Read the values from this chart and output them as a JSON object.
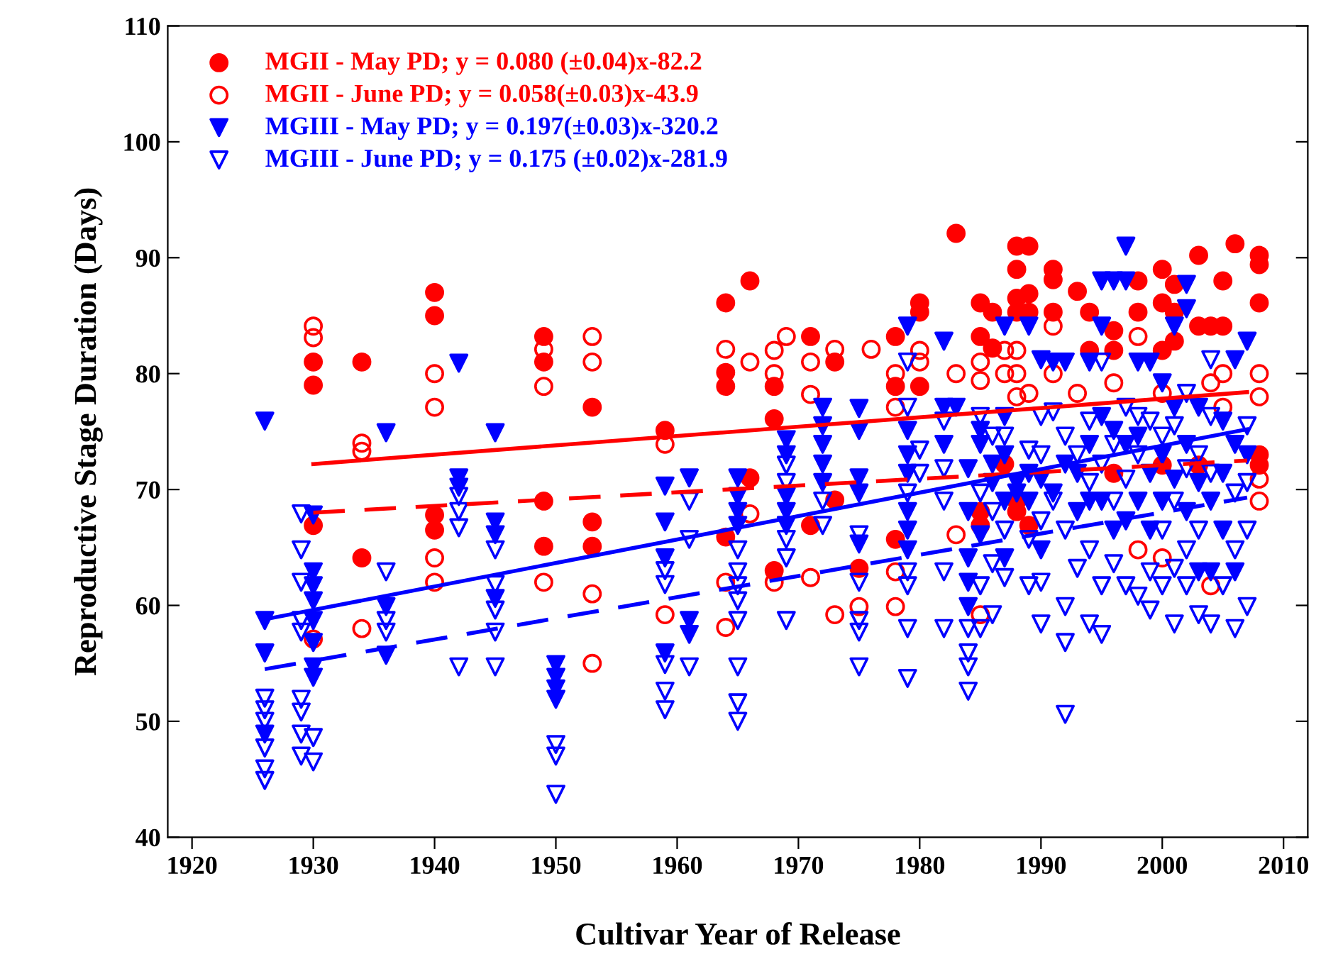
{
  "chart_data": {
    "type": "scatter",
    "xlabel": "Cultivar Year of Release",
    "ylabel": "Reproductive Stage Duration (Days)",
    "xlim": [
      1918,
      2012
    ],
    "ylim": [
      40,
      110
    ],
    "xticks": [
      1920,
      1930,
      1940,
      1950,
      1960,
      1970,
      1980,
      1990,
      2000,
      2010
    ],
    "yticks": [
      40,
      50,
      60,
      70,
      80,
      90,
      100,
      110
    ],
    "grid": false,
    "legend": "top left",
    "series": [
      {
        "name": "MGII - May PD; y = 0.080 (±0.04)x-82.2",
        "marker": "circle",
        "color": "#ff0000",
        "x": [
          1930,
          1930,
          1930,
          1934,
          1934,
          1940,
          1940,
          1940,
          1940,
          1949,
          1949,
          1949,
          1949,
          1953,
          1953,
          1953,
          1959,
          1964,
          1964,
          1964,
          1964,
          1966,
          1966,
          1968,
          1968,
          1968,
          1971,
          1971,
          1973,
          1973,
          1975,
          1978,
          1978,
          1978,
          1980,
          1980,
          1980,
          1983,
          1985,
          1985,
          1985,
          1985,
          1986,
          1986,
          1987,
          1988,
          1988,
          1988,
          1988,
          1988,
          1988,
          1989,
          1989,
          1989,
          1989,
          1991,
          1991,
          1991,
          1993,
          1994,
          1994,
          1996,
          1996,
          1996,
          1998,
          1998,
          2000,
          2000,
          2000,
          2000,
          2001,
          2001,
          2001,
          2003,
          2003,
          2003,
          2004,
          2005,
          2005,
          2006,
          2008,
          2008,
          2008,
          2008,
          2008
        ],
        "values": [
          81.0,
          79.0,
          66.9,
          81.0,
          64.1,
          87.0,
          85.0,
          67.8,
          66.5,
          83.2,
          81.0,
          69.0,
          65.1,
          77.1,
          67.2,
          65.1,
          75.1,
          86.1,
          80.1,
          78.9,
          65.9,
          88.0,
          71.0,
          78.9,
          76.1,
          63.0,
          83.2,
          66.9,
          81.0,
          69.1,
          63.2,
          83.2,
          78.9,
          65.7,
          86.1,
          85.3,
          78.9,
          92.1,
          86.1,
          83.2,
          68.1,
          66.9,
          85.3,
          82.2,
          72.2,
          91.0,
          89.0,
          86.5,
          85.3,
          69.0,
          68.1,
          91.0,
          86.9,
          85.3,
          66.9,
          89.0,
          88.1,
          85.3,
          87.1,
          85.3,
          82.0,
          83.7,
          82.0,
          71.4,
          88.0,
          85.3,
          89.0,
          86.1,
          82.0,
          72.1,
          87.7,
          85.3,
          82.8,
          90.2,
          84.1,
          72.1,
          84.1,
          88.0,
          84.1,
          91.2,
          90.2,
          89.4,
          86.1,
          73.0,
          72.1
        ]
      },
      {
        "name": "MGII - June PD; y = 0.058(±0.03)x-43.9",
        "marker": "circle",
        "color": "#ff0000",
        "x": [
          1930,
          1930,
          1930,
          1934,
          1934,
          1934,
          1940,
          1940,
          1940,
          1940,
          1949,
          1949,
          1949,
          1953,
          1953,
          1953,
          1953,
          1959,
          1959,
          1964,
          1964,
          1964,
          1966,
          1966,
          1968,
          1968,
          1968,
          1969,
          1971,
          1971,
          1971,
          1973,
          1973,
          1975,
          1976,
          1978,
          1978,
          1978,
          1978,
          1980,
          1980,
          1983,
          1983,
          1985,
          1985,
          1985,
          1987,
          1987,
          1988,
          1988,
          1988,
          1989,
          1991,
          1991,
          1993,
          1996,
          1998,
          1998,
          2000,
          2000,
          2004,
          2004,
          2005,
          2005,
          2008,
          2008,
          2008,
          2008
        ],
        "values": [
          84.1,
          83.1,
          57.1,
          74.0,
          73.3,
          58.0,
          80.0,
          77.1,
          64.1,
          62.0,
          82.1,
          78.9,
          62.0,
          83.2,
          81.0,
          61.0,
          55.0,
          73.9,
          59.2,
          82.1,
          62.0,
          58.1,
          81.0,
          67.9,
          82.0,
          80.0,
          62.0,
          83.2,
          81.0,
          78.2,
          62.4,
          82.1,
          59.2,
          59.9,
          82.1,
          80.0,
          77.1,
          62.9,
          59.9,
          82.0,
          81.0,
          80.0,
          66.1,
          81.0,
          79.4,
          59.2,
          82.0,
          80.0,
          82.0,
          80.0,
          78.0,
          78.3,
          84.1,
          80.0,
          78.3,
          79.2,
          83.2,
          64.8,
          78.3,
          64.1,
          79.2,
          61.7,
          80.0,
          77.1,
          80.0,
          78.0,
          70.9,
          69.0
        ]
      },
      {
        "name": "MGIII - May PD; y = 0.197(±0.03)x-320.2",
        "marker": "triangle",
        "color": "#0000ff",
        "x": [
          1926,
          1926,
          1926,
          1926,
          1930,
          1930,
          1930,
          1930,
          1930,
          1930,
          1930,
          1930,
          1936,
          1936,
          1936,
          1942,
          1942,
          1942,
          1945,
          1945,
          1945,
          1945,
          1950,
          1950,
          1950,
          1950,
          1959,
          1959,
          1959,
          1959,
          1961,
          1961,
          1961,
          1965,
          1965,
          1965,
          1965,
          1969,
          1969,
          1969,
          1969,
          1969,
          1972,
          1972,
          1972,
          1972,
          1972,
          1975,
          1975,
          1975,
          1975,
          1975,
          1979,
          1979,
          1979,
          1979,
          1979,
          1979,
          1979,
          1982,
          1982,
          1982,
          1983,
          1984,
          1984,
          1984,
          1984,
          1984,
          1985,
          1985,
          1985,
          1986,
          1986,
          1987,
          1987,
          1987,
          1987,
          1987,
          1988,
          1988,
          1989,
          1989,
          1989,
          1990,
          1990,
          1990,
          1991,
          1991,
          1992,
          1992,
          1993,
          1993,
          1994,
          1994,
          1994,
          1995,
          1995,
          1995,
          1995,
          1996,
          1996,
          1996,
          1997,
          1997,
          1997,
          1997,
          1998,
          1998,
          1998,
          1999,
          1999,
          1999,
          2000,
          2000,
          2000,
          2001,
          2001,
          2001,
          2002,
          2002,
          2002,
          2002,
          2003,
          2003,
          2003,
          2004,
          2004,
          2005,
          2005,
          2005,
          2006,
          2006,
          2006,
          2007,
          2007
        ],
        "values": [
          75.9,
          58.7,
          55.9,
          48.9,
          67.8,
          62.9,
          61.7,
          60.4,
          58.7,
          56.8,
          54.7,
          53.8,
          74.9,
          59.9,
          55.7,
          80.9,
          71.0,
          70.2,
          74.9,
          67.2,
          66.1,
          60.6,
          54.9,
          53.8,
          52.8,
          51.9,
          70.3,
          67.2,
          64.1,
          55.9,
          71.0,
          58.7,
          57.5,
          71.0,
          69.4,
          68.1,
          66.9,
          74.3,
          73.0,
          69.4,
          68.1,
          66.9,
          77.1,
          75.5,
          73.9,
          72.2,
          70.6,
          77.0,
          75.1,
          71.0,
          69.7,
          65.3,
          84.1,
          75.1,
          73.0,
          71.4,
          68.1,
          66.5,
          64.8,
          82.8,
          77.1,
          73.9,
          77.1,
          71.8,
          68.1,
          64.1,
          62.0,
          59.9,
          75.1,
          73.9,
          66.1,
          72.2,
          70.6,
          84.1,
          76.3,
          73.0,
          69.0,
          64.1,
          70.6,
          69.7,
          84.1,
          71.4,
          69.0,
          81.2,
          70.9,
          64.8,
          81.0,
          69.7,
          81.0,
          72.2,
          71.4,
          68.1,
          81.0,
          73.9,
          69.0,
          88.0,
          84.1,
          76.3,
          69.0,
          88.0,
          75.1,
          66.5,
          91.0,
          88.0,
          73.9,
          67.3,
          81.0,
          74.6,
          69.0,
          81.0,
          71.4,
          66.5,
          79.2,
          73.0,
          69.0,
          84.1,
          77.1,
          70.9,
          87.7,
          85.6,
          73.9,
          68.1,
          77.1,
          70.6,
          62.9,
          69.0,
          62.9,
          75.9,
          71.4,
          66.5,
          81.2,
          73.9,
          62.9,
          82.8,
          73.0
        ]
      },
      {
        "name": "MGIII - June PD; y = 0.175 (±0.02)x-281.9",
        "marker": "triangle",
        "color": "#0000ff",
        "x": [
          1926,
          1926,
          1926,
          1926,
          1926,
          1926,
          1929,
          1929,
          1929,
          1929,
          1929,
          1929,
          1929,
          1929,
          1929,
          1930,
          1930,
          1936,
          1936,
          1936,
          1942,
          1942,
          1942,
          1942,
          1945,
          1945,
          1945,
          1945,
          1945,
          1950,
          1950,
          1950,
          1959,
          1959,
          1959,
          1959,
          1959,
          1961,
          1961,
          1961,
          1965,
          1965,
          1965,
          1965,
          1965,
          1965,
          1965,
          1965,
          1969,
          1969,
          1969,
          1969,
          1969,
          1972,
          1972,
          1975,
          1975,
          1975,
          1975,
          1975,
          1979,
          1979,
          1979,
          1979,
          1979,
          1979,
          1979,
          1980,
          1980,
          1982,
          1982,
          1982,
          1982,
          1982,
          1984,
          1984,
          1984,
          1984,
          1985,
          1985,
          1985,
          1985,
          1986,
          1986,
          1986,
          1986,
          1987,
          1987,
          1987,
          1989,
          1989,
          1989,
          1990,
          1990,
          1990,
          1990,
          1990,
          1991,
          1991,
          1992,
          1992,
          1992,
          1992,
          1992,
          1993,
          1993,
          1994,
          1994,
          1994,
          1994,
          1995,
          1995,
          1995,
          1995,
          1996,
          1996,
          1996,
          1997,
          1997,
          1997,
          1998,
          1998,
          1998,
          1999,
          1999,
          1999,
          2000,
          2000,
          2000,
          2001,
          2001,
          2001,
          2001,
          2002,
          2002,
          2002,
          2002,
          2003,
          2003,
          2003,
          2004,
          2004,
          2004,
          2004,
          2005,
          2006,
          2006,
          2006,
          2007,
          2007,
          2007,
          2007
        ],
        "values": [
          52.0,
          51.0,
          50.0,
          47.7,
          45.9,
          44.9,
          67.9,
          64.8,
          62.0,
          58.7,
          57.7,
          51.9,
          50.8,
          48.9,
          47.0,
          48.6,
          46.5,
          62.9,
          58.7,
          57.7,
          69.4,
          68.1,
          66.7,
          54.7,
          64.8,
          61.8,
          59.6,
          57.7,
          54.7,
          48.0,
          47.0,
          43.7,
          63.0,
          61.8,
          54.9,
          52.6,
          51.0,
          69.0,
          65.7,
          54.7,
          64.8,
          62.9,
          61.7,
          60.4,
          58.7,
          54.7,
          51.6,
          50.0,
          72.1,
          70.6,
          65.7,
          64.1,
          58.7,
          69.0,
          66.9,
          66.1,
          62.0,
          58.7,
          57.7,
          54.7,
          81.0,
          77.1,
          69.7,
          62.9,
          61.7,
          58.0,
          53.7,
          73.4,
          71.4,
          75.9,
          71.8,
          69.0,
          62.9,
          58.0,
          58.0,
          55.9,
          54.7,
          52.6,
          76.3,
          69.7,
          61.7,
          58.0,
          74.6,
          68.1,
          63.6,
          59.2,
          74.6,
          66.5,
          62.4,
          73.4,
          65.7,
          61.7,
          76.3,
          73.0,
          67.3,
          62.0,
          58.4,
          76.7,
          69.0,
          74.6,
          66.5,
          59.9,
          56.8,
          50.6,
          73.0,
          63.2,
          75.9,
          70.6,
          64.8,
          58.4,
          81.0,
          72.2,
          61.7,
          57.5,
          73.9,
          69.0,
          63.6,
          77.1,
          70.9,
          61.7,
          76.3,
          73.0,
          60.8,
          75.9,
          62.9,
          59.6,
          74.6,
          66.5,
          61.7,
          75.5,
          69.0,
          63.2,
          58.4,
          78.3,
          71.8,
          64.8,
          61.7,
          73.0,
          66.5,
          59.2,
          81.2,
          76.3,
          71.4,
          58.4,
          61.7,
          69.7,
          64.8,
          58.0,
          75.5,
          70.6,
          66.5,
          59.9
        ]
      },
      {
        "type": "line",
        "line_style": "solid",
        "color": "#ff0000",
        "x": [
          1930,
          2007
        ],
        "values": [
          72.2,
          78.4
        ]
      },
      {
        "type": "line",
        "line_style": "dashed",
        "color": "#ff0000",
        "x": [
          1930,
          2007
        ],
        "values": [
          68.0,
          72.5
        ]
      },
      {
        "type": "line",
        "line_style": "solid",
        "color": "#0000ff",
        "x": [
          1926,
          2007
        ],
        "values": [
          58.8,
          75.2
        ]
      },
      {
        "type": "line",
        "line_style": "dashed",
        "color": "#0000ff",
        "x": [
          1926,
          2007
        ],
        "values": [
          54.5,
          69.3
        ]
      }
    ]
  }
}
